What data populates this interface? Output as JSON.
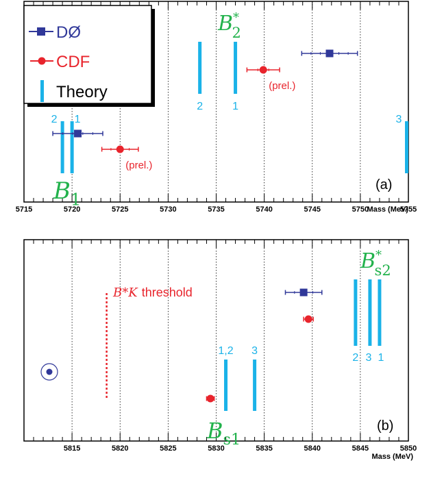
{
  "chart_data": [
    {
      "type": "scatter",
      "panel_label": "(a)",
      "xlabel": "Mass (MeV)",
      "xlim": [
        5715,
        5755
      ],
      "x_ticks": [
        "5715",
        "5720",
        "5725",
        "5730",
        "5735",
        "5740",
        "5745",
        "5750",
        "5755"
      ],
      "grid": "vertical dotted",
      "colors": {
        "D0": "#303899",
        "CDF": "#e8242c",
        "theory": "#1ab2e8",
        "state": "#22b24c"
      },
      "legend": {
        "position": "top-left",
        "entries": [
          {
            "label": "DØ",
            "marker": "square"
          },
          {
            "label": "CDF",
            "marker": "circle"
          },
          {
            "label": "Theory",
            "marker": "bar"
          }
        ]
      },
      "states": [
        {
          "symbol": "B",
          "sub": "1",
          "sup": "",
          "near_mass": 5720
        },
        {
          "symbol": "B",
          "sub": "2",
          "sup": "*",
          "near_mass": 5737
        }
      ],
      "measurements": [
        {
          "experiment": "DØ",
          "state": "B1",
          "mass": 5720.6,
          "err": 2.6,
          "note": ""
        },
        {
          "experiment": "CDF",
          "state": "B1",
          "mass": 5725.0,
          "err": 1.9,
          "note": "(prel.)"
        },
        {
          "experiment": "DØ",
          "state": "B2*",
          "mass": 5746.8,
          "err": 2.9,
          "note": ""
        },
        {
          "experiment": "CDF",
          "state": "B2*",
          "mass": 5739.9,
          "err": 1.7,
          "note": "(prel.)"
        }
      ],
      "theory": [
        {
          "label": "2",
          "state": "B1",
          "mass": 5719.0
        },
        {
          "label": "1",
          "state": "B1",
          "mass": 5720.0
        },
        {
          "label": "2",
          "state": "B2*",
          "mass": 5733.3
        },
        {
          "label": "1",
          "state": "B2*",
          "mass": 5737.0
        },
        {
          "label": "3",
          "state": "B2*",
          "mass": 5755.0
        }
      ]
    },
    {
      "type": "scatter",
      "panel_label": "(b)",
      "xlabel": "Mass (MeV)",
      "xlim": [
        5810,
        5850
      ],
      "x_ticks": [
        "5815",
        "5820",
        "5825",
        "5830",
        "5835",
        "5840",
        "5845",
        "5850"
      ],
      "grid": "vertical dotted",
      "threshold": {
        "mass": 5818.6,
        "label": "threshold",
        "symbol": "B*K"
      },
      "states": [
        {
          "symbol": "B",
          "sub": "s1",
          "sup": "",
          "near_mass": 5831
        },
        {
          "symbol": "B",
          "sub": "s2",
          "sup": "*",
          "near_mass": 5846
        }
      ],
      "measurements": [
        {
          "experiment": "DØ",
          "state": "Bs2*",
          "mass": 5839.1,
          "err": 1.9
        },
        {
          "experiment": "CDF",
          "state": "Bs2*",
          "mass": 5839.6,
          "err": 0.5
        },
        {
          "experiment": "CDF",
          "state": "Bs1",
          "mass": 5829.4,
          "err": 0.4
        }
      ],
      "theory": [
        {
          "label": "1,2",
          "state": "Bs1",
          "mass": 5831.0
        },
        {
          "label": "3",
          "state": "Bs1",
          "mass": 5834.0
        },
        {
          "label": "2",
          "state": "Bs2*",
          "mass": 5844.5
        },
        {
          "label": "3",
          "state": "Bs2*",
          "mass": 5846.0
        },
        {
          "label": "1",
          "state": "Bs2*",
          "mass": 5847.0
        }
      ]
    }
  ]
}
